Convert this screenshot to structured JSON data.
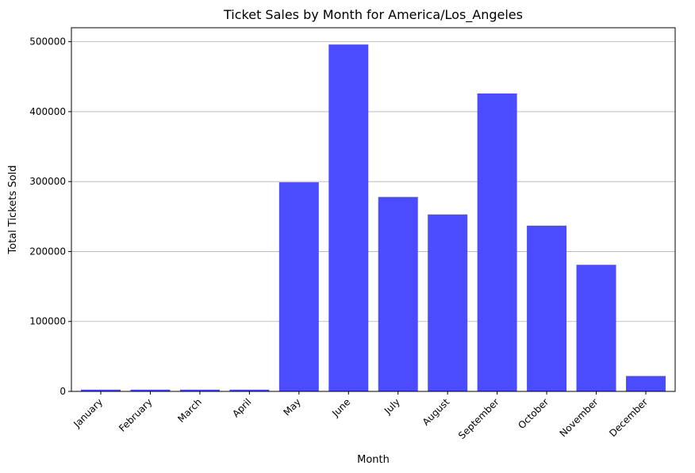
{
  "chart_data": {
    "type": "bar",
    "title": "Ticket Sales by Month for America/Los_Angeles",
    "xlabel": "Month",
    "ylabel": "Total Tickets Sold",
    "categories": [
      "January",
      "February",
      "March",
      "April",
      "May",
      "June",
      "July",
      "August",
      "September",
      "October",
      "November",
      "December"
    ],
    "values": [
      2500,
      2500,
      2500,
      2500,
      299000,
      496000,
      278000,
      253000,
      426000,
      237000,
      181000,
      22000
    ],
    "ylim": [
      0,
      520000
    ],
    "yticks": [
      0,
      100000,
      200000,
      300000,
      400000,
      500000
    ],
    "ytick_labels": [
      "0",
      "100000",
      "200000",
      "300000",
      "400000",
      "500000"
    ],
    "grid": "y-axis major",
    "bar_color": "#4b4bff",
    "grid_color": "#b0b0b0"
  }
}
